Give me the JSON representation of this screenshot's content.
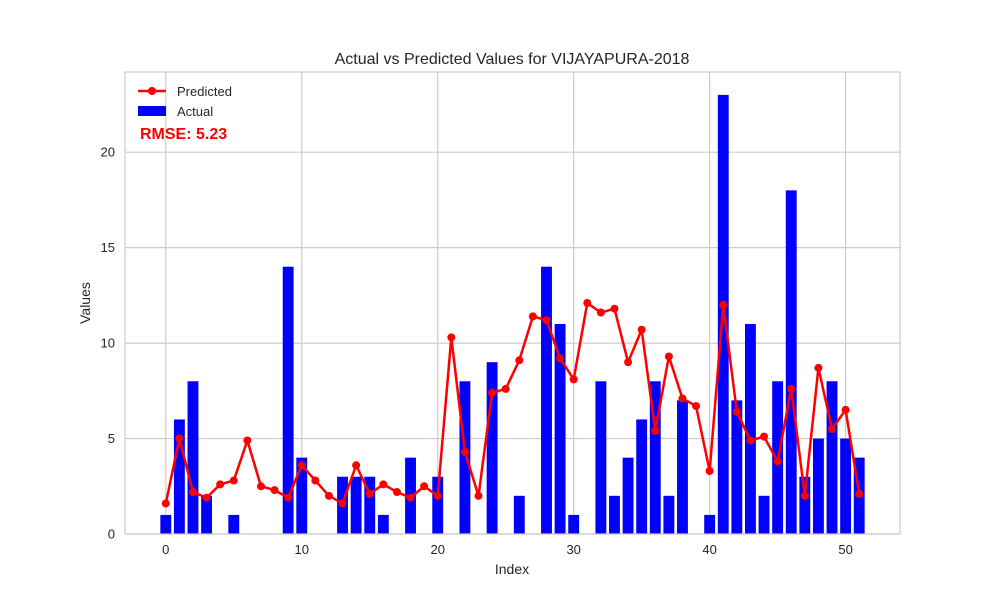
{
  "chart_data": {
    "type": "bar",
    "title": "Actual vs Predicted Values for VIJAYAPURA-2018",
    "xlabel": "Index",
    "ylabel": "Values",
    "xlim": [
      -3,
      54
    ],
    "ylim": [
      0,
      24.2
    ],
    "x_ticks": [
      0,
      10,
      20,
      30,
      40,
      50
    ],
    "y_ticks": [
      0,
      5,
      10,
      15,
      20
    ],
    "grid": true,
    "legend_placement": "top-left",
    "annotation": "RMSE: 5.23",
    "x": [
      0,
      1,
      2,
      3,
      4,
      5,
      6,
      7,
      8,
      9,
      10,
      11,
      12,
      13,
      14,
      15,
      16,
      17,
      18,
      19,
      20,
      21,
      22,
      23,
      24,
      25,
      26,
      27,
      28,
      29,
      30,
      31,
      32,
      33,
      34,
      35,
      36,
      37,
      38,
      39,
      40,
      41,
      42,
      43,
      44,
      45,
      46,
      47,
      48,
      49,
      50,
      51
    ],
    "series": [
      {
        "name": "Predicted",
        "kind": "line",
        "color": "#ff0000",
        "values": [
          1.6,
          5.0,
          2.2,
          1.9,
          2.6,
          2.8,
          4.9,
          2.5,
          2.3,
          1.9,
          3.6,
          2.8,
          2.0,
          1.6,
          3.6,
          2.1,
          2.6,
          2.2,
          1.9,
          2.5,
          2.0,
          10.3,
          4.3,
          2.0,
          7.4,
          7.6,
          9.1,
          11.4,
          11.2,
          9.2,
          8.1,
          12.1,
          11.6,
          11.8,
          9.0,
          10.7,
          5.4,
          9.3,
          7.1,
          6.7,
          3.3,
          12.0,
          6.4,
          4.9,
          5.1,
          3.8,
          7.6,
          2.0,
          8.7,
          5.5,
          6.5,
          2.1
        ]
      },
      {
        "name": "Actual",
        "kind": "bar",
        "color": "#0000ff",
        "values": [
          1,
          6,
          8,
          2,
          0,
          1,
          0,
          0,
          0,
          14,
          4,
          0,
          0,
          3,
          3,
          3,
          1,
          0,
          4,
          0,
          3,
          0,
          8,
          0,
          9,
          0,
          2,
          0,
          14,
          11,
          1,
          0,
          8,
          2,
          4,
          6,
          8,
          2,
          7,
          0,
          1,
          23,
          7,
          11,
          2,
          8,
          18,
          3,
          5,
          8,
          5,
          4
        ]
      }
    ]
  }
}
